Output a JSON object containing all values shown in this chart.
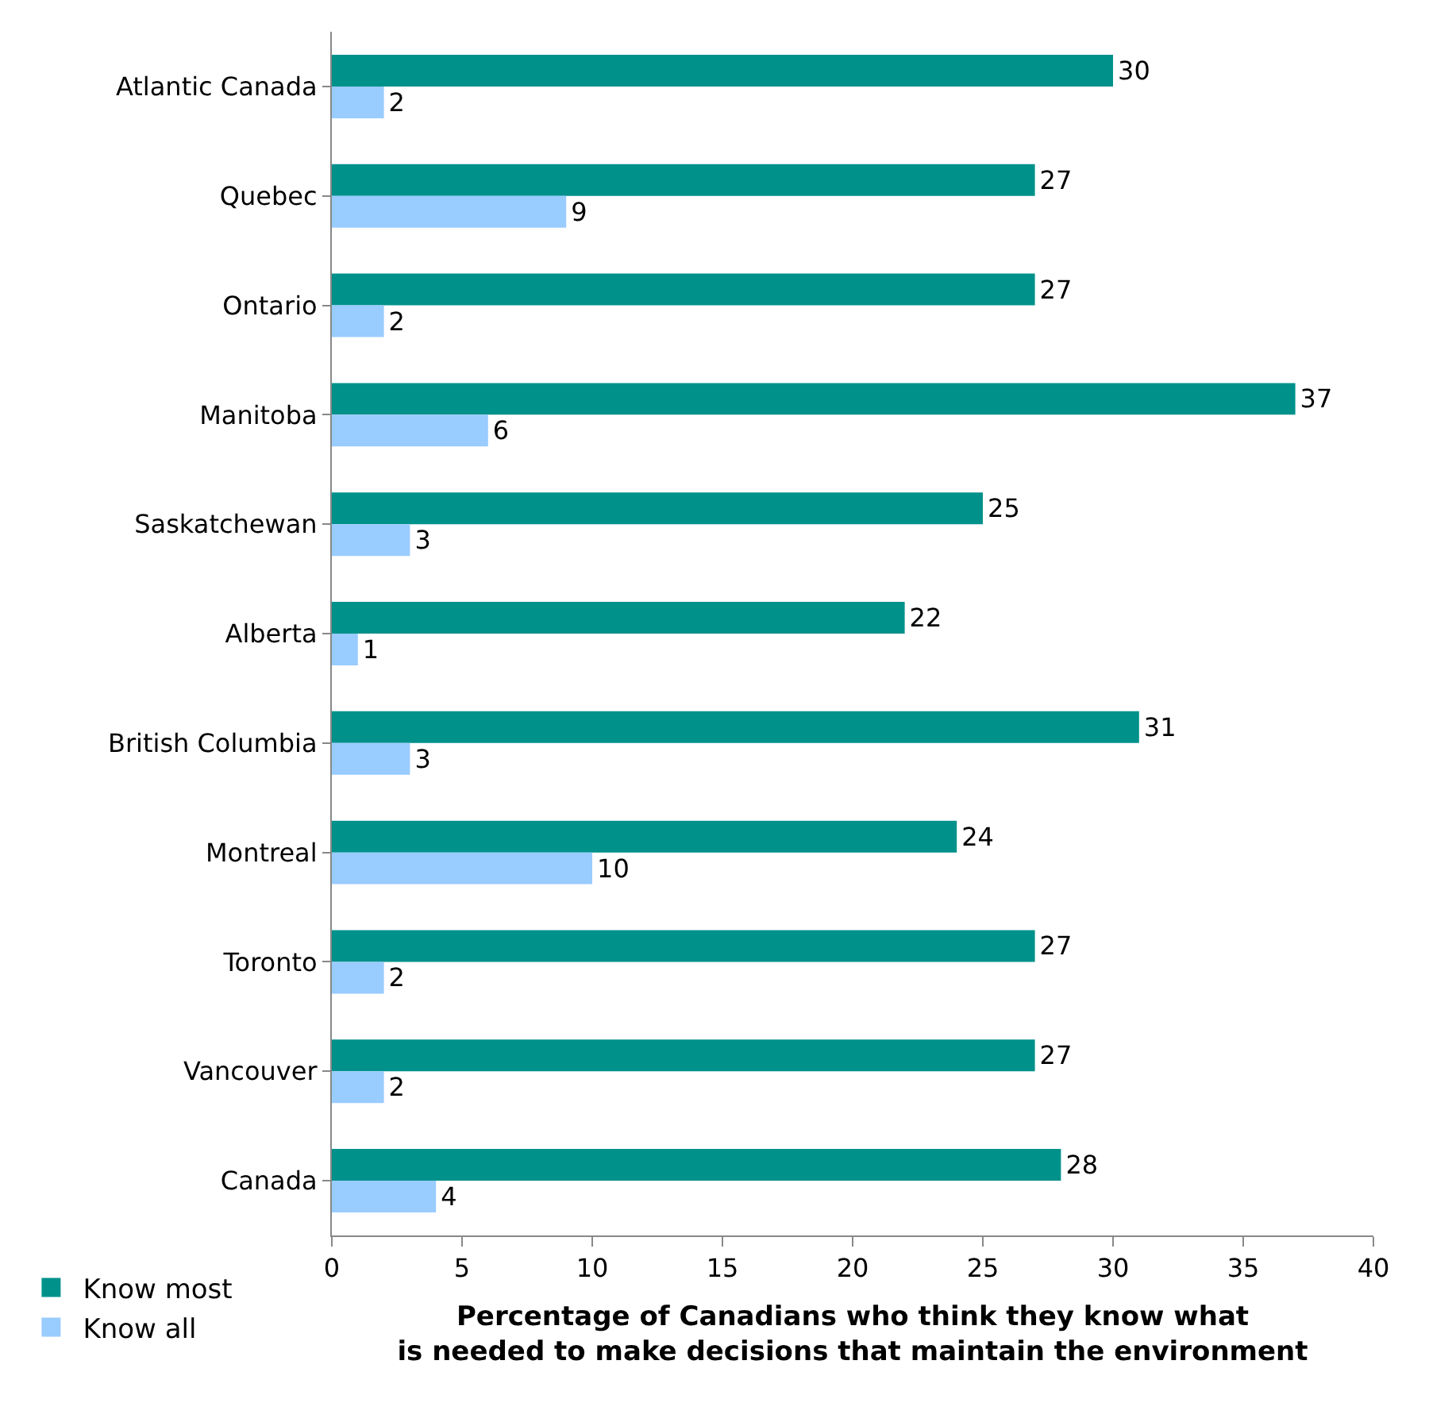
{
  "chart_data": {
    "type": "bar",
    "orientation": "horizontal",
    "xlabel": "Percentage of Canadians who think they know what is needed to make decisions that maintain the environment",
    "categories": [
      "Atlantic Canada",
      "Quebec",
      "Ontario",
      "Manitoba",
      "Saskatchewan",
      "Alberta",
      "British Columbia",
      "Montreal",
      "Toronto",
      "Vancouver",
      "Canada"
    ],
    "series": [
      {
        "name": "Know most",
        "color": "#00918b",
        "values": [
          30,
          27,
          27,
          37,
          25,
          22,
          31,
          24,
          27,
          27,
          28
        ]
      },
      {
        "name": "Know all",
        "color": "#99ccff",
        "values": [
          2,
          9,
          2,
          6,
          3,
          1,
          3,
          10,
          2,
          2,
          4
        ]
      }
    ],
    "xlim": [
      0,
      40
    ],
    "xticks": [
      0,
      5,
      10,
      15,
      20,
      25,
      30,
      35,
      40
    ],
    "data_labels": true,
    "legend": "bottom left"
  }
}
